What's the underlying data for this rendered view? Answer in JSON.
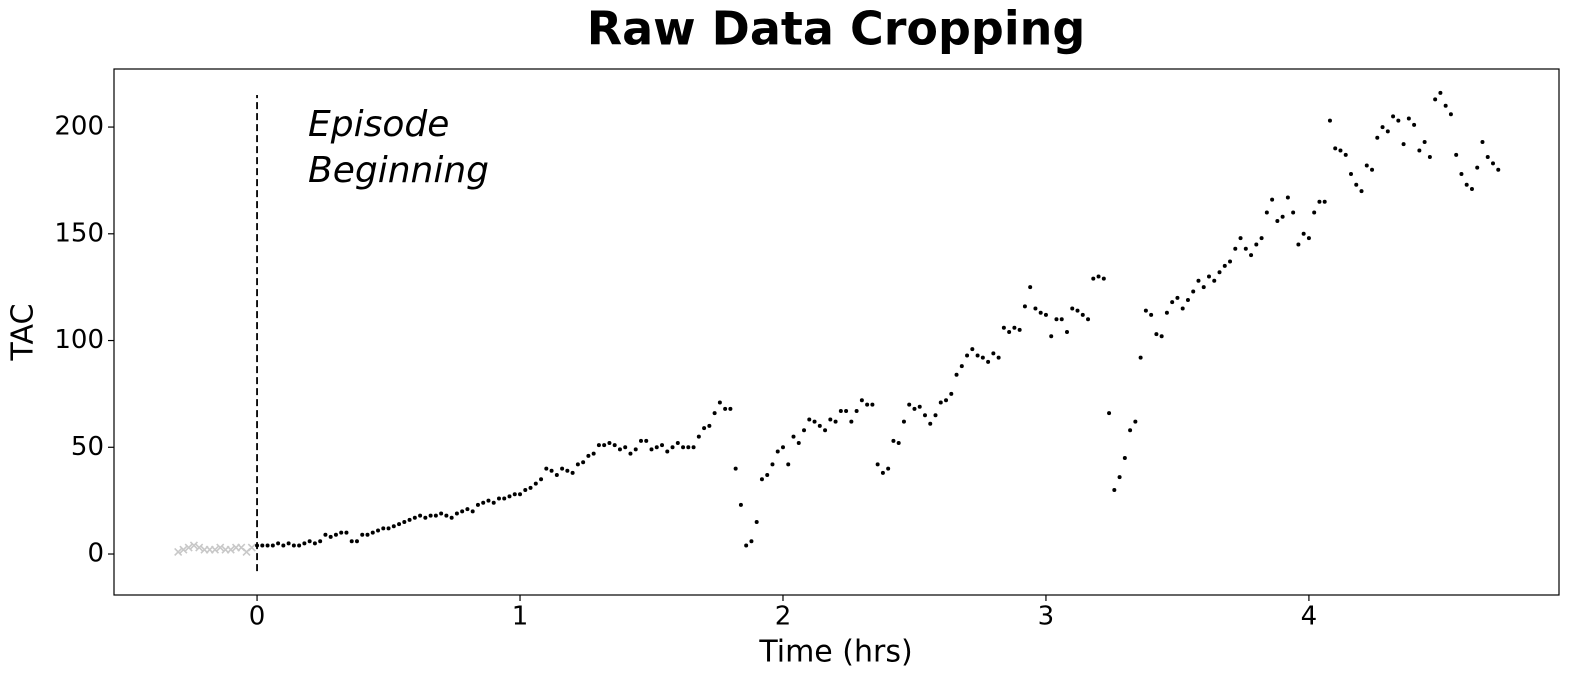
{
  "chart_data": {
    "type": "scatter",
    "title": "Raw Data Cropping",
    "xlabel": "Time (hrs)",
    "ylabel": "TAC",
    "annotation": [
      "Episode",
      "Beginning"
    ],
    "vline": {
      "x": 0,
      "ymin": -8,
      "ymax": 215
    },
    "xlim": [
      -0.544,
      4.951
    ],
    "ylim": [
      -19.2,
      227.2
    ],
    "xticks": [
      0,
      1,
      2,
      3,
      4
    ],
    "yticks": [
      0,
      50,
      100,
      150,
      200
    ],
    "series": [
      {
        "color": "#c8c8c8",
        "marker": "x",
        "x": [
          -0.3,
          -0.28,
          -0.26,
          -0.24,
          -0.22,
          -0.2,
          -0.18,
          -0.16,
          -0.14,
          -0.12,
          -0.1,
          -0.08,
          -0.06,
          -0.04,
          -0.02
        ],
        "values": [
          1,
          2,
          3,
          4,
          3,
          2,
          2,
          2,
          3,
          2,
          2,
          3,
          3,
          1,
          3
        ]
      },
      {
        "color": "#000000",
        "marker": "dot",
        "x": [
          0.0,
          0.02,
          0.04,
          0.06,
          0.08,
          0.1,
          0.12,
          0.14,
          0.16,
          0.18,
          0.2,
          0.22,
          0.24,
          0.26,
          0.28,
          0.3,
          0.32,
          0.34,
          0.36,
          0.38,
          0.4,
          0.42,
          0.44,
          0.46,
          0.48,
          0.5,
          0.52,
          0.54,
          0.56,
          0.58,
          0.6,
          0.62,
          0.64,
          0.66,
          0.68,
          0.7,
          0.72,
          0.74,
          0.76,
          0.78,
          0.8,
          0.82,
          0.84,
          0.86,
          0.88,
          0.9,
          0.92,
          0.94,
          0.96,
          0.98,
          1.0,
          1.02,
          1.04,
          1.06,
          1.08,
          1.1,
          1.12,
          1.14,
          1.16,
          1.18,
          1.2,
          1.22,
          1.24,
          1.26,
          1.28,
          1.3,
          1.32,
          1.34,
          1.36,
          1.38,
          1.4,
          1.42,
          1.44,
          1.46,
          1.48,
          1.5,
          1.52,
          1.54,
          1.56,
          1.58,
          1.6,
          1.62,
          1.64,
          1.66,
          1.68,
          1.7,
          1.72,
          1.74,
          1.76,
          1.78,
          1.8,
          1.82,
          1.84,
          1.86,
          1.88,
          1.9,
          1.92,
          1.94,
          1.96,
          1.98,
          2.0,
          2.02,
          2.04,
          2.06,
          2.08,
          2.1,
          2.12,
          2.14,
          2.16,
          2.18,
          2.2,
          2.22,
          2.24,
          2.26,
          2.28,
          2.3,
          2.32,
          2.34,
          2.36,
          2.38,
          2.4,
          2.42,
          2.44,
          2.46,
          2.48,
          2.5,
          2.52,
          2.54,
          2.56,
          2.58,
          2.6,
          2.62,
          2.64,
          2.66,
          2.68,
          2.7,
          2.72,
          2.74,
          2.76,
          2.78,
          2.8,
          2.82,
          2.84,
          2.86,
          2.88,
          2.9,
          2.92,
          2.94,
          2.96,
          2.98,
          3.0,
          3.02,
          3.04,
          3.06,
          3.08,
          3.1,
          3.12,
          3.14,
          3.16,
          3.18,
          3.2,
          3.22,
          3.24,
          3.26,
          3.28,
          3.3,
          3.32,
          3.34,
          3.36,
          3.38,
          3.4,
          3.42,
          3.44,
          3.46,
          3.48,
          3.5,
          3.52,
          3.54,
          3.56,
          3.58,
          3.6,
          3.62,
          3.64,
          3.66,
          3.68,
          3.7,
          3.72,
          3.74,
          3.76,
          3.78,
          3.8,
          3.82,
          3.84,
          3.86,
          3.88,
          3.9,
          3.92,
          3.94,
          3.96,
          3.98,
          4.0,
          4.02,
          4.04,
          4.06,
          4.08,
          4.1,
          4.12,
          4.14,
          4.16,
          4.18,
          4.2,
          4.22,
          4.24,
          4.26,
          4.28,
          4.3,
          4.32,
          4.34,
          4.36,
          4.38,
          4.4,
          4.42,
          4.44,
          4.46,
          4.48,
          4.5,
          4.52,
          4.54,
          4.56,
          4.58,
          4.6,
          4.62,
          4.64,
          4.66,
          4.68,
          4.7,
          4.72
        ],
        "values": [
          4,
          4,
          4,
          4,
          5,
          4,
          5,
          4,
          4,
          5,
          6,
          5,
          6,
          9,
          8,
          9,
          10,
          10,
          6,
          6,
          9,
          9,
          10,
          11,
          12,
          12,
          13,
          14,
          15,
          16,
          17,
          18,
          17,
          18,
          18,
          19,
          18,
          17,
          19,
          20,
          21,
          20,
          23,
          24,
          25,
          24,
          26,
          26,
          27,
          28,
          28,
          30,
          31,
          33,
          35,
          40,
          39,
          37,
          40,
          39,
          38,
          42,
          43,
          46,
          47,
          51,
          51,
          52,
          51,
          49,
          50,
          47,
          49,
          53,
          53,
          49,
          50,
          51,
          48,
          50,
          52,
          50,
          50,
          50,
          55,
          59,
          60,
          66,
          71,
          68,
          68,
          40,
          23,
          4,
          6,
          15,
          35,
          37,
          42,
          48,
          50,
          42,
          55,
          52,
          58,
          63,
          62,
          60,
          58,
          63,
          62,
          67,
          67,
          62,
          67,
          72,
          70,
          70,
          42,
          38,
          40,
          53,
          52,
          62,
          70,
          68,
          69,
          65,
          61,
          65,
          71,
          72,
          75,
          84,
          88,
          93,
          96,
          93,
          92,
          90,
          94,
          92,
          106,
          104,
          106,
          105,
          116,
          125,
          115,
          113,
          112,
          102,
          110,
          110,
          104,
          115,
          114,
          112,
          110,
          129,
          130,
          129,
          66,
          30,
          36,
          45,
          58,
          62,
          92,
          114,
          112,
          103,
          102,
          113,
          118,
          120,
          115,
          119,
          123,
          128,
          125,
          130,
          128,
          132,
          135,
          137,
          143,
          148,
          143,
          140,
          145,
          148,
          160,
          166,
          156,
          158,
          167,
          160,
          145,
          150,
          148,
          160,
          165,
          165,
          203,
          190,
          189,
          187,
          178,
          173,
          170,
          182,
          180,
          195,
          200,
          198,
          205,
          203,
          192,
          204,
          201,
          189,
          193,
          186,
          213,
          216,
          210,
          206,
          187,
          178,
          173,
          171,
          181,
          193,
          186,
          183,
          180
        ]
      }
    ]
  }
}
